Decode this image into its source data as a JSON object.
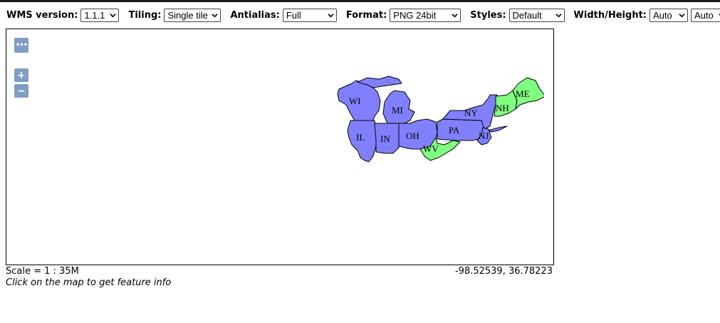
{
  "toolbar": {
    "wms_version": {
      "label": "WMS version:",
      "value": "1.1.1"
    },
    "tiling": {
      "label": "Tiling:",
      "value": "Single tile"
    },
    "antialias": {
      "label": "Antialias:",
      "value": "Full"
    },
    "format": {
      "label": "Format:",
      "value": "PNG 24bit"
    },
    "styles": {
      "label": "Styles:",
      "value": "Default"
    },
    "width_height": {
      "label": "Width/Height:",
      "width_value": "Auto",
      "height_value": "Auto"
    }
  },
  "map": {
    "controls": {
      "menu": "•••",
      "zoom_in": "+",
      "zoom_out": "−"
    },
    "fill_primary": "#8080ff",
    "fill_secondary": "#80ff80",
    "states": [
      {
        "abbr": "WI",
        "fill": "primary"
      },
      {
        "abbr": "MI",
        "fill": "primary"
      },
      {
        "abbr": "IL",
        "fill": "primary"
      },
      {
        "abbr": "IN",
        "fill": "primary"
      },
      {
        "abbr": "OH",
        "fill": "primary"
      },
      {
        "abbr": "PA",
        "fill": "primary"
      },
      {
        "abbr": "NY",
        "fill": "primary"
      },
      {
        "abbr": "NJ",
        "fill": "primary"
      },
      {
        "abbr": "WV",
        "fill": "secondary"
      },
      {
        "abbr": "NH",
        "fill": "secondary"
      },
      {
        "abbr": "ME",
        "fill": "secondary"
      }
    ]
  },
  "footer": {
    "scale": "Scale = 1 : 35M",
    "coordinates": "-98.52539, 36.78223",
    "hint": "Click on the map to get feature info"
  }
}
